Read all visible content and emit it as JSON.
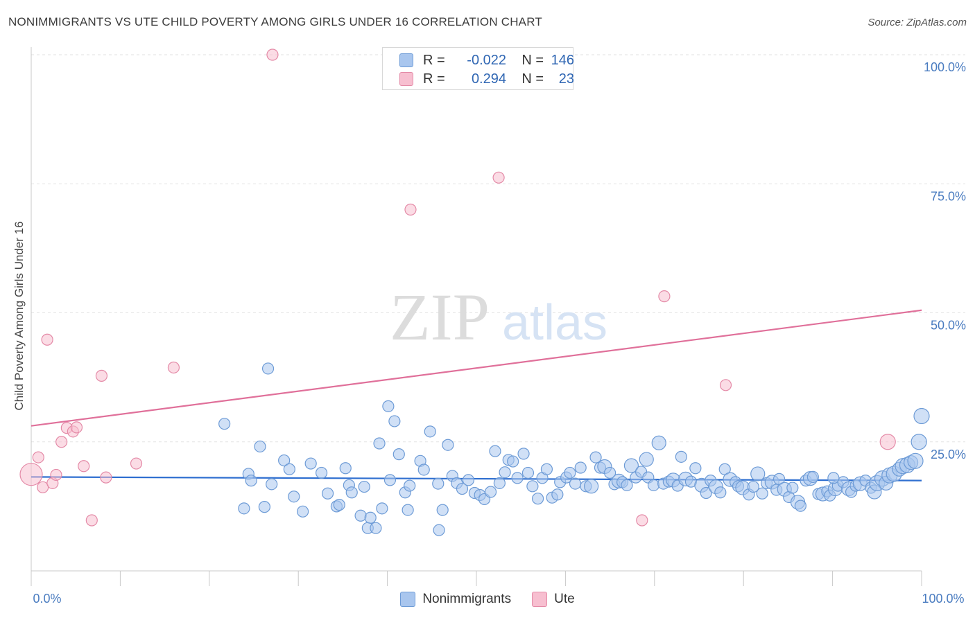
{
  "header": {
    "title": "NONIMMIGRANTS VS UTE CHILD POVERTY AMONG GIRLS UNDER 16 CORRELATION CHART",
    "source": "Source: ZipAtlas.com"
  },
  "watermark": {
    "zip": "ZIP",
    "atlas": "atlas"
  },
  "legend": {
    "rows": [
      {
        "r_label": "R =",
        "r_value": "-0.022",
        "n_label": "N =",
        "n_value": "146",
        "color": "#a9c6ee",
        "border": "#6d9bd6"
      },
      {
        "r_label": "R =",
        "r_value": "0.294",
        "n_label": "N =",
        "n_value": "23",
        "color": "#f7bfd0",
        "border": "#e48aa7"
      }
    ]
  },
  "bottom_legend": {
    "items": [
      "Nonimmigrants",
      "Ute"
    ]
  },
  "colors": {
    "blue_fill": "#a9c6ee",
    "blue_stroke": "#6d9bd6",
    "blue_line": "#2f6fd0",
    "pink_fill": "#f7bfd0",
    "pink_stroke": "#e48aa7",
    "pink_line": "#e0709a",
    "tick_text": "#4a7cc0"
  },
  "chart_data": {
    "type": "scatter",
    "title": "NONIMMIGRANTS VS UTE CHILD POVERTY AMONG GIRLS UNDER 16 CORRELATION CHART",
    "ylabel": "Child Poverty Among Girls Under 16",
    "xlim": [
      0,
      100
    ],
    "ylim": [
      0,
      100
    ],
    "x_tick_labels": [
      "0.0%",
      "100.0%"
    ],
    "y_tick_labels": [
      "25.0%",
      "50.0%",
      "75.0%",
      "100.0%"
    ],
    "grid": "horizontal dashed",
    "legend_position": "top-center",
    "series": [
      {
        "name": "Nonimmigrants",
        "R": -0.022,
        "N": 146,
        "trend": [
          [
            0,
            18.2
          ],
          [
            100,
            17.5
          ]
        ],
        "points": [
          [
            21.7,
            28.5
          ],
          [
            26.6,
            39.2
          ],
          [
            25.7,
            24.1
          ],
          [
            24.4,
            18.8
          ],
          [
            24.7,
            17.5
          ],
          [
            27.0,
            16.8
          ],
          [
            23.9,
            12.1
          ],
          [
            26.2,
            12.4
          ],
          [
            28.4,
            21.4
          ],
          [
            29.0,
            19.7
          ],
          [
            29.5,
            14.4
          ],
          [
            30.5,
            11.5
          ],
          [
            31.4,
            20.8
          ],
          [
            32.6,
            19.0
          ],
          [
            33.3,
            15.0
          ],
          [
            34.3,
            12.5
          ],
          [
            34.6,
            12.8
          ],
          [
            35.3,
            19.9
          ],
          [
            35.7,
            16.6
          ],
          [
            36.0,
            15.2
          ],
          [
            37.0,
            10.7
          ],
          [
            37.4,
            16.3
          ],
          [
            37.8,
            8.3
          ],
          [
            38.1,
            10.3
          ],
          [
            38.7,
            8.3
          ],
          [
            39.1,
            24.7
          ],
          [
            39.4,
            12.1
          ],
          [
            40.1,
            31.9
          ],
          [
            40.3,
            17.6
          ],
          [
            40.8,
            29.0
          ],
          [
            41.3,
            22.6
          ],
          [
            42.0,
            15.2
          ],
          [
            42.3,
            11.8
          ],
          [
            42.5,
            16.5
          ],
          [
            43.7,
            21.3
          ],
          [
            44.1,
            19.6
          ],
          [
            44.8,
            27.0
          ],
          [
            45.7,
            16.9
          ],
          [
            45.8,
            7.9
          ],
          [
            46.2,
            11.8
          ],
          [
            46.8,
            24.4
          ],
          [
            47.3,
            18.4
          ],
          [
            47.8,
            17.0
          ],
          [
            48.4,
            15.9
          ],
          [
            49.1,
            17.6
          ],
          [
            49.8,
            15.1
          ],
          [
            50.4,
            14.7
          ],
          [
            50.9,
            13.9
          ],
          [
            51.6,
            15.3
          ],
          [
            52.1,
            23.2
          ],
          [
            52.6,
            17.0
          ],
          [
            53.2,
            19.1
          ],
          [
            53.6,
            21.5
          ],
          [
            54.1,
            21.2
          ],
          [
            54.6,
            18.0
          ],
          [
            55.3,
            22.7
          ],
          [
            55.8,
            19.0
          ],
          [
            56.3,
            16.4
          ],
          [
            56.9,
            14.0
          ],
          [
            57.4,
            18.0
          ],
          [
            57.9,
            19.7
          ],
          [
            58.5,
            14.2
          ],
          [
            59.1,
            14.8
          ],
          [
            59.4,
            17.2
          ],
          [
            60.1,
            18.1
          ],
          [
            60.5,
            19.0
          ],
          [
            61.1,
            16.9
          ],
          [
            61.7,
            20.0
          ],
          [
            62.3,
            16.4
          ],
          [
            62.9,
            16.4
          ],
          [
            63.4,
            22.0
          ],
          [
            63.9,
            20.0
          ],
          [
            64.4,
            20.2
          ],
          [
            65.0,
            19.0
          ],
          [
            65.5,
            16.8
          ],
          [
            66.0,
            17.4
          ],
          [
            66.4,
            17.2
          ],
          [
            66.9,
            16.6
          ],
          [
            67.4,
            20.4
          ],
          [
            67.9,
            18.1
          ],
          [
            68.5,
            19.2
          ],
          [
            69.1,
            21.6
          ],
          [
            69.3,
            18.1
          ],
          [
            69.9,
            16.6
          ],
          [
            70.5,
            24.8
          ],
          [
            71.0,
            16.9
          ],
          [
            71.6,
            17.3
          ],
          [
            72.1,
            17.6
          ],
          [
            72.6,
            16.5
          ],
          [
            73.0,
            22.1
          ],
          [
            73.5,
            17.8
          ],
          [
            74.1,
            17.3
          ],
          [
            74.6,
            19.9
          ],
          [
            75.3,
            16.6
          ],
          [
            75.8,
            15.1
          ],
          [
            76.3,
            17.5
          ],
          [
            76.9,
            16.3
          ],
          [
            77.4,
            15.2
          ],
          [
            77.9,
            19.7
          ],
          [
            78.5,
            17.7
          ],
          [
            79.1,
            17.2
          ],
          [
            79.4,
            16.4
          ],
          [
            79.9,
            16.1
          ],
          [
            80.6,
            14.8
          ],
          [
            81.1,
            16.3
          ],
          [
            81.6,
            18.8
          ],
          [
            82.1,
            15.0
          ],
          [
            82.6,
            17.0
          ],
          [
            83.2,
            17.2
          ],
          [
            83.7,
            15.7
          ],
          [
            84.0,
            17.8
          ],
          [
            84.6,
            15.8
          ],
          [
            85.1,
            14.3
          ],
          [
            85.5,
            16.1
          ],
          [
            86.1,
            13.3
          ],
          [
            86.4,
            12.6
          ],
          [
            87.0,
            17.5
          ],
          [
            87.5,
            17.9
          ],
          [
            87.8,
            18.2
          ],
          [
            88.4,
            14.9
          ],
          [
            88.9,
            14.9
          ],
          [
            89.4,
            15.4
          ],
          [
            89.7,
            14.6
          ],
          [
            90.3,
            15.9
          ],
          [
            90.6,
            16.5
          ],
          [
            91.2,
            17.2
          ],
          [
            91.8,
            15.9
          ],
          [
            92.1,
            15.3
          ],
          [
            92.6,
            16.5
          ],
          [
            93.1,
            16.9
          ],
          [
            93.7,
            17.5
          ],
          [
            94.3,
            16.1
          ],
          [
            94.7,
            15.3
          ],
          [
            95.0,
            17.0
          ],
          [
            95.6,
            17.9
          ],
          [
            96.0,
            17.0
          ],
          [
            96.4,
            18.5
          ],
          [
            96.9,
            18.8
          ],
          [
            97.5,
            19.7
          ],
          [
            97.9,
            20.3
          ],
          [
            98.4,
            20.5
          ],
          [
            98.8,
            21.0
          ],
          [
            99.3,
            21.3
          ],
          [
            99.7,
            25.0
          ],
          [
            100.0,
            30.0
          ],
          [
            90.1,
            18.0
          ]
        ]
      },
      {
        "name": "Ute",
        "R": 0.294,
        "N": 23,
        "trend": [
          [
            0,
            28.1
          ],
          [
            100,
            50.5
          ]
        ],
        "points": [
          [
            0.0,
            18.7
          ],
          [
            0.8,
            22.0
          ],
          [
            1.3,
            16.2
          ],
          [
            1.8,
            44.8
          ],
          [
            2.4,
            17.0
          ],
          [
            2.8,
            18.6
          ],
          [
            3.4,
            25.0
          ],
          [
            4.0,
            27.7
          ],
          [
            4.7,
            27.0
          ],
          [
            5.1,
            27.8
          ],
          [
            5.9,
            20.3
          ],
          [
            6.8,
            9.8
          ],
          [
            7.9,
            37.8
          ],
          [
            8.4,
            18.1
          ],
          [
            11.8,
            20.8
          ],
          [
            16.0,
            39.4
          ],
          [
            27.1,
            100.0
          ],
          [
            42.6,
            70.0
          ],
          [
            52.5,
            76.2
          ],
          [
            71.1,
            53.2
          ],
          [
            68.6,
            9.8
          ],
          [
            78.0,
            36.0
          ],
          [
            96.2,
            25.0
          ]
        ]
      }
    ]
  }
}
